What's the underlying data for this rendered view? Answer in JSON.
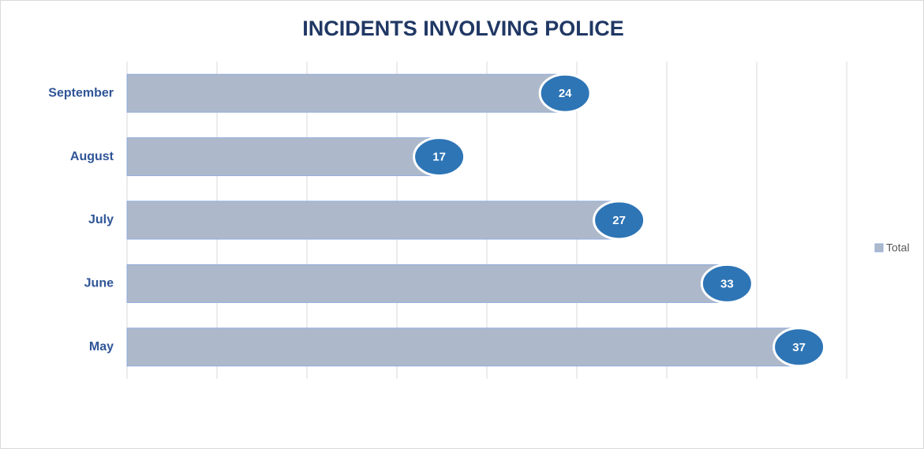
{
  "chart_data": {
    "type": "bar",
    "orientation": "horizontal",
    "title": "INCIDENTS INVOLVING POLICE",
    "categories": [
      "September",
      "August",
      "July",
      "June",
      "May"
    ],
    "series": [
      {
        "name": "Total",
        "color": "#adb9ca",
        "values": [
          24,
          17,
          27,
          33,
          37
        ]
      }
    ],
    "xlim": [
      0,
      40
    ],
    "xticks": [
      0,
      5,
      10,
      15,
      20,
      25,
      30,
      35,
      40
    ],
    "grid": true,
    "legend": "right"
  }
}
